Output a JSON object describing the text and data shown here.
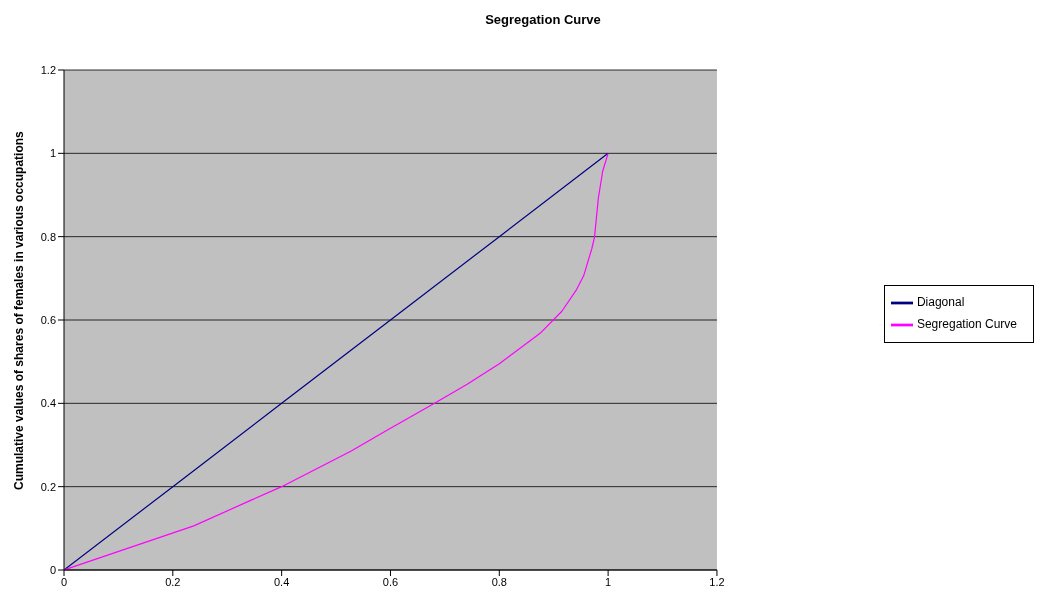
{
  "chart_data": {
    "type": "line",
    "title": "Segregation Curve",
    "ylabel": "Cumulative values of shares of females in various occupations",
    "xlim": [
      0,
      1.2
    ],
    "xticks": [
      0,
      0.2,
      0.4,
      0.6,
      0.8,
      1,
      1.2
    ],
    "ylim": [
      0,
      1.2
    ],
    "yticks": [
      0,
      0.2,
      0.4,
      0.6,
      0.8,
      1,
      1.2
    ],
    "grid": "y",
    "legend": "right",
    "marker": "none",
    "line_style": "solid",
    "series": [
      {
        "name": "Diagonal",
        "color": "#000080",
        "x": [
          0,
          0.2,
          0.4,
          0.6,
          0.8,
          1
        ],
        "values": [
          0,
          0.2,
          0.4,
          0.6,
          0.8,
          1
        ]
      },
      {
        "name": "Segregation Curve",
        "color": "#ff00ff",
        "x": [
          0,
          0.2385,
          0.343,
          0.4,
          0.527,
          0.596,
          0.681,
          0.741,
          0.8,
          0.875,
          0.915,
          0.942,
          0.955,
          0.97,
          0.975,
          0.982,
          0.99,
          1
        ],
        "values": [
          0,
          0.106,
          0.167,
          0.2,
          0.285,
          0.337,
          0.4,
          0.446,
          0.495,
          0.568,
          0.621,
          0.673,
          0.706,
          0.771,
          0.799,
          0.892,
          0.957,
          1
        ]
      }
    ]
  }
}
